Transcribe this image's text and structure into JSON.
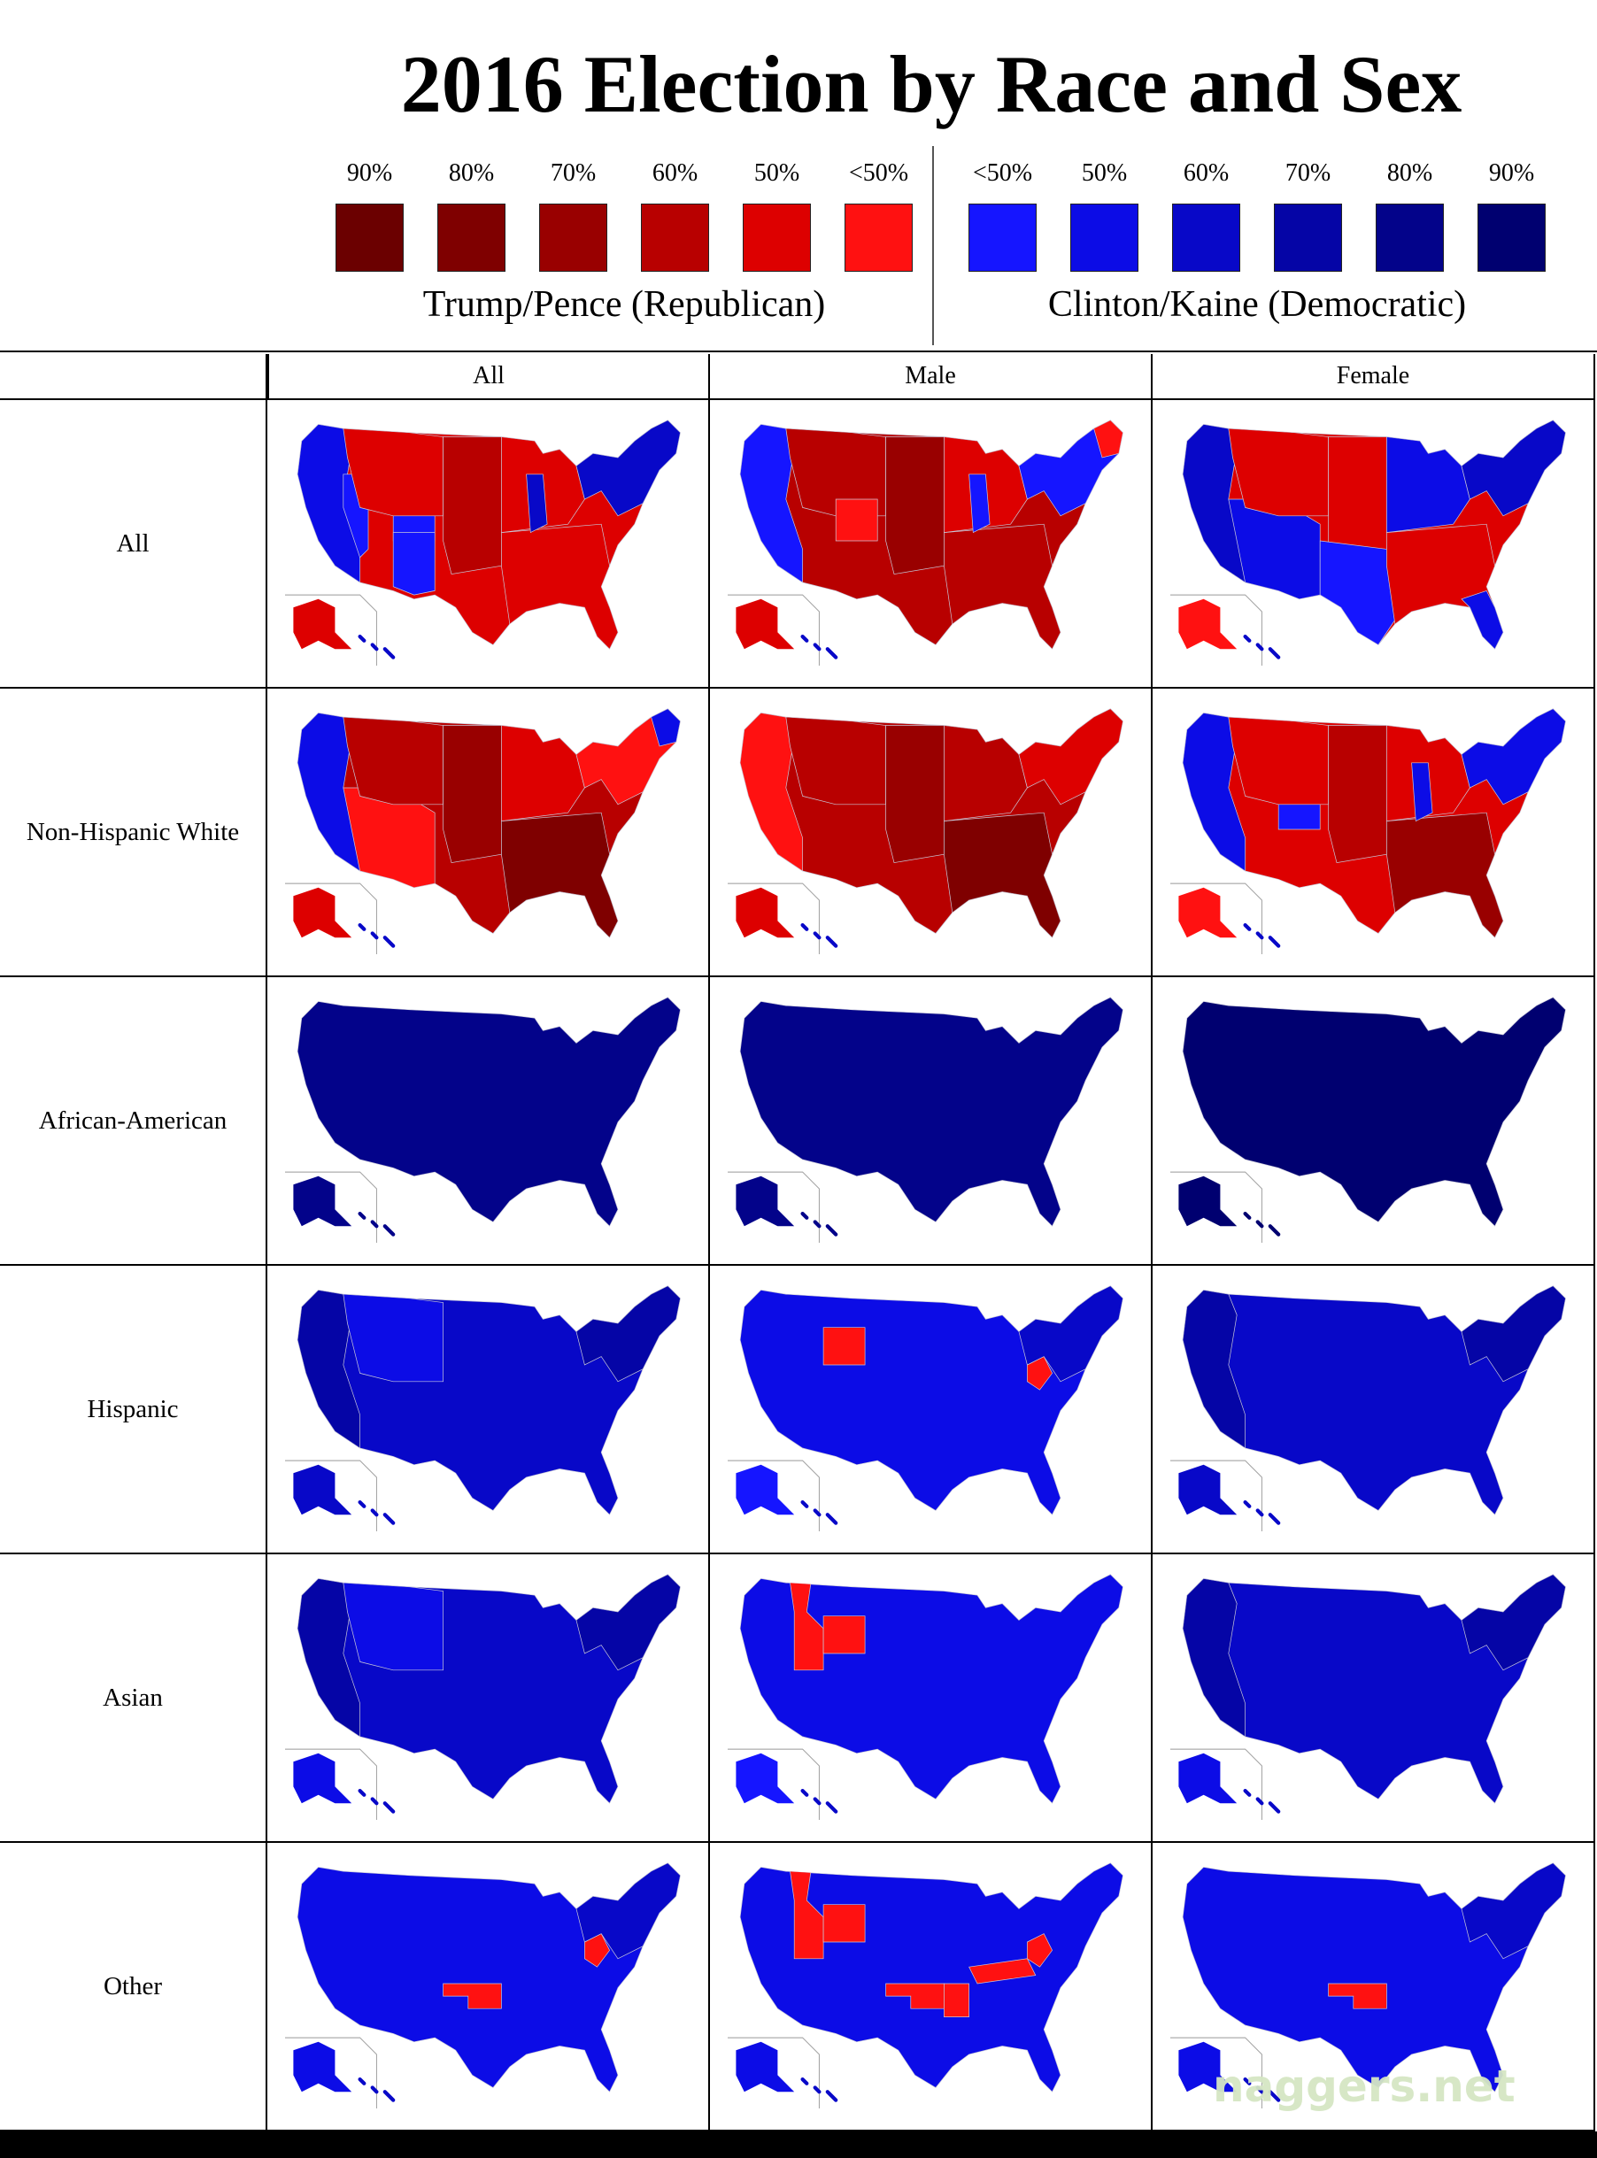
{
  "title": "2016 Election by Race and Sex",
  "legend": {
    "republican": {
      "caption": "Trump/Pence (Republican)",
      "bins": [
        {
          "label": "90%",
          "color": "#6b0000"
        },
        {
          "label": "80%",
          "color": "#7f0000"
        },
        {
          "label": "70%",
          "color": "#990000"
        },
        {
          "label": "60%",
          "color": "#b80000"
        },
        {
          "label": "50%",
          "color": "#dd0000"
        },
        {
          "label": "<50%",
          "color": "#ff1111"
        }
      ]
    },
    "democratic": {
      "caption": "Clinton/Kaine (Democratic)",
      "bins": [
        {
          "label": "<50%",
          "color": "#1515ff"
        },
        {
          "label": "50%",
          "color": "#0c0ce6"
        },
        {
          "label": "60%",
          "color": "#0808c8"
        },
        {
          "label": "70%",
          "color": "#0505a6"
        },
        {
          "label": "80%",
          "color": "#03038a"
        },
        {
          "label": "90%",
          "color": "#000070"
        }
      ]
    }
  },
  "columns": [
    "All",
    "Male",
    "Female"
  ],
  "rows": [
    {
      "label": "All",
      "maps": [
        {
          "base": "#dd0000",
          "ak": "#dd0000",
          "hi": "#0808c8",
          "regions": [
            {
              "id": "pacific",
              "color": "#0c0ce6"
            },
            {
              "id": "nevada",
              "color": "#1515ff"
            },
            {
              "id": "colorado",
              "color": "#1515ff"
            },
            {
              "id": "mountain",
              "color": "#dd0000"
            },
            {
              "id": "plains",
              "color": "#b80000"
            },
            {
              "id": "south",
              "color": "#dd0000"
            },
            {
              "id": "midwest",
              "color": "#dd0000"
            },
            {
              "id": "illinois",
              "color": "#0808c8"
            },
            {
              "id": "northeast",
              "color": "#0808c8"
            },
            {
              "id": "newmexico",
              "color": "#1515ff"
            }
          ]
        },
        {
          "base": "#b80000",
          "ak": "#dd0000",
          "hi": "#0808c8",
          "regions": [
            {
              "id": "pacific",
              "color": "#1515ff"
            },
            {
              "id": "mountain",
              "color": "#b80000"
            },
            {
              "id": "plains",
              "color": "#990000"
            },
            {
              "id": "south",
              "color": "#b80000"
            },
            {
              "id": "midwest",
              "color": "#dd0000"
            },
            {
              "id": "illinois",
              "color": "#1515ff"
            },
            {
              "id": "northeast",
              "color": "#1515ff"
            },
            {
              "id": "colorado",
              "color": "#ff1111"
            },
            {
              "id": "maine",
              "color": "#ff1111"
            }
          ]
        },
        {
          "base": "#dd0000",
          "ak": "#ff1111",
          "hi": "#0808c8",
          "regions": [
            {
              "id": "pacific",
              "color": "#0808c8"
            },
            {
              "id": "southwest",
              "color": "#0c0ce6"
            },
            {
              "id": "mountain",
              "color": "#dd0000"
            },
            {
              "id": "plains",
              "color": "#dd0000"
            },
            {
              "id": "midwest",
              "color": "#0c0ce6"
            },
            {
              "id": "northeast",
              "color": "#0808c8"
            },
            {
              "id": "texas",
              "color": "#1515ff"
            },
            {
              "id": "south",
              "color": "#dd0000"
            },
            {
              "id": "florida",
              "color": "#0c0ce6"
            }
          ]
        }
      ]
    },
    {
      "label": "Non-Hispanic White",
      "maps": [
        {
          "base": "#b80000",
          "ak": "#dd0000",
          "hi": "#0808c8",
          "regions": [
            {
              "id": "pacific",
              "color": "#0c0ce6"
            },
            {
              "id": "southwest",
              "color": "#ff1111"
            },
            {
              "id": "mountain",
              "color": "#b80000"
            },
            {
              "id": "plains",
              "color": "#990000"
            },
            {
              "id": "south",
              "color": "#7f0000"
            },
            {
              "id": "midwest",
              "color": "#dd0000"
            },
            {
              "id": "northeast",
              "color": "#ff1111"
            },
            {
              "id": "maine",
              "color": "#0c0ce6"
            }
          ]
        },
        {
          "base": "#b80000",
          "ak": "#dd0000",
          "hi": "#0808c8",
          "regions": [
            {
              "id": "pacific",
              "color": "#ff1111"
            },
            {
              "id": "mountain",
              "color": "#b80000"
            },
            {
              "id": "plains",
              "color": "#990000"
            },
            {
              "id": "south",
              "color": "#7f0000"
            },
            {
              "id": "midwest",
              "color": "#b80000"
            },
            {
              "id": "northeast",
              "color": "#dd0000"
            }
          ]
        },
        {
          "base": "#dd0000",
          "ak": "#ff1111",
          "hi": "#0808c8",
          "regions": [
            {
              "id": "pacific",
              "color": "#0c0ce6"
            },
            {
              "id": "colorado",
              "color": "#1515ff"
            },
            {
              "id": "mountain",
              "color": "#dd0000"
            },
            {
              "id": "plains",
              "color": "#b80000"
            },
            {
              "id": "south",
              "color": "#990000"
            },
            {
              "id": "midwest",
              "color": "#dd0000"
            },
            {
              "id": "illinois",
              "color": "#0c0ce6"
            },
            {
              "id": "northeast",
              "color": "#0c0ce6"
            }
          ]
        }
      ]
    },
    {
      "label": "African-American",
      "maps": [
        {
          "base": "#03038a",
          "ak": "#03038a",
          "hi": "#03038a",
          "regions": []
        },
        {
          "base": "#03038a",
          "ak": "#03038a",
          "hi": "#03038a",
          "regions": []
        },
        {
          "base": "#000070",
          "ak": "#000070",
          "hi": "#000070",
          "regions": []
        }
      ]
    },
    {
      "label": "Hispanic",
      "maps": [
        {
          "base": "#0808c8",
          "ak": "#0808c8",
          "hi": "#0808c8",
          "regions": [
            {
              "id": "pacific",
              "color": "#0505a6"
            },
            {
              "id": "mountain",
              "color": "#0c0ce6"
            },
            {
              "id": "northeast",
              "color": "#0505a6"
            }
          ]
        },
        {
          "base": "#0c0ce6",
          "ak": "#1515ff",
          "hi": "#0808c8",
          "regions": [
            {
              "id": "wyoming",
              "color": "#ff1111"
            },
            {
              "id": "wvirginia",
              "color": "#ff1111"
            },
            {
              "id": "northeast",
              "color": "#0808c8"
            }
          ]
        },
        {
          "base": "#0808c8",
          "ak": "#0808c8",
          "hi": "#0808c8",
          "regions": [
            {
              "id": "pacific",
              "color": "#0505a6"
            },
            {
              "id": "northeast",
              "color": "#0505a6"
            }
          ]
        }
      ]
    },
    {
      "label": "Asian",
      "maps": [
        {
          "base": "#0808c8",
          "ak": "#0c0ce6",
          "hi": "#0808c8",
          "regions": [
            {
              "id": "pacific",
              "color": "#0505a6"
            },
            {
              "id": "mountain",
              "color": "#0c0ce6"
            },
            {
              "id": "northeast",
              "color": "#0505a6"
            }
          ]
        },
        {
          "base": "#0c0ce6",
          "ak": "#1515ff",
          "hi": "#0808c8",
          "regions": [
            {
              "id": "idaho",
              "color": "#ff1111"
            },
            {
              "id": "wyoming",
              "color": "#ff1111"
            }
          ]
        },
        {
          "base": "#0808c8",
          "ak": "#0c0ce6",
          "hi": "#0808c8",
          "regions": [
            {
              "id": "pacific",
              "color": "#0505a6"
            },
            {
              "id": "northeast",
              "color": "#0505a6"
            }
          ]
        }
      ]
    },
    {
      "label": "Other",
      "maps": [
        {
          "base": "#0c0ce6",
          "ak": "#0c0ce6",
          "hi": "#0808c8",
          "regions": [
            {
              "id": "oklahoma",
              "color": "#ff1111"
            },
            {
              "id": "wvirginia",
              "color": "#ff1111"
            },
            {
              "id": "northeast",
              "color": "#0808c8"
            }
          ]
        },
        {
          "base": "#0c0ce6",
          "ak": "#0c0ce6",
          "hi": "#0808c8",
          "regions": [
            {
              "id": "idaho",
              "color": "#ff1111"
            },
            {
              "id": "wyoming",
              "color": "#ff1111"
            },
            {
              "id": "oklahoma",
              "color": "#ff1111"
            },
            {
              "id": "arkansas",
              "color": "#ff1111"
            },
            {
              "id": "kentucky",
              "color": "#ff1111"
            },
            {
              "id": "wvirginia",
              "color": "#ff1111"
            }
          ]
        },
        {
          "base": "#0c0ce6",
          "ak": "#0c0ce6",
          "hi": "#0808c8",
          "regions": [
            {
              "id": "oklahoma",
              "color": "#ff1111"
            },
            {
              "id": "northeast",
              "color": "#0808c8"
            }
          ]
        }
      ]
    }
  ],
  "watermark": "naggers.net"
}
